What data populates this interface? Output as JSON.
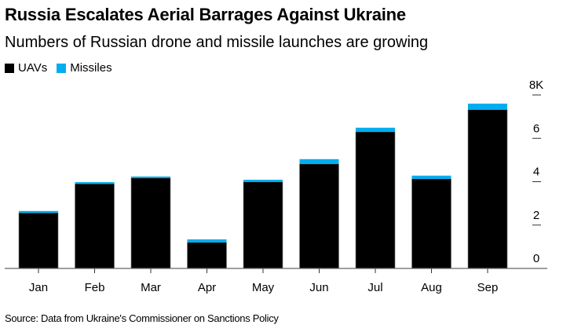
{
  "chart_data": {
    "type": "bar",
    "stacked": true,
    "title": "Russia Escalates Aerial Barrages Against Ukraine",
    "subtitle": "Numbers of Russian drone and missile launches are growing",
    "categories": [
      "Jan",
      "Feb",
      "Mar",
      "Apr",
      "May",
      "Jun",
      "Jul",
      "Aug",
      "Sep"
    ],
    "series": [
      {
        "name": "UAVs",
        "color": "#000000",
        "values": [
          2560,
          3900,
          4170,
          1200,
          3990,
          4820,
          6300,
          4130,
          7320
        ]
      },
      {
        "name": "Missiles",
        "color": "#00aeef",
        "values": [
          90,
          80,
          70,
          140,
          100,
          220,
          190,
          150,
          280
        ]
      }
    ],
    "y_axis": {
      "position": "right",
      "ticks": [
        0,
        2000,
        4000,
        6000,
        8000
      ],
      "tick_labels": [
        "0",
        "2",
        "4",
        "6",
        "8K"
      ],
      "range": [
        0,
        8000
      ]
    },
    "xlabel": "",
    "ylabel": "",
    "grid": false,
    "legend": "top-left",
    "source": "Source: Data from Ukraine's Commissioner on Sanctions Policy"
  }
}
